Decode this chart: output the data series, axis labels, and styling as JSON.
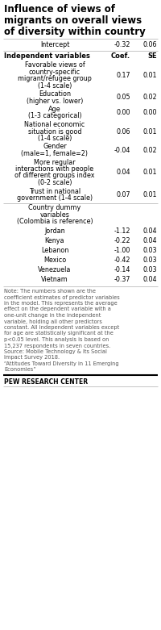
{
  "title": "Influence of views of migrants on overall views of diversity within country",
  "intercept_label": "Intercept",
  "intercept_coef": "-0.32",
  "intercept_se": "0.06",
  "header_label": "Independent variables",
  "header_coef": "Coef.",
  "header_se": "SE",
  "rows": [
    {
      "label": "Favorable views of\ncountry-specific\nmigrant/refugee group\n(1-4 scale)",
      "coef": "0.17",
      "se": "0.01",
      "coef_line": 3
    },
    {
      "label": "Education\n(higher vs. lower)",
      "coef": "0.05",
      "se": "0.02",
      "coef_line": 1
    },
    {
      "label": "Age\n(1-3 categorical)",
      "coef": "0.00",
      "se": "0.00",
      "coef_line": 1
    },
    {
      "label": "National economic\nsituation is good\n(1-4 scale)",
      "coef": "0.06",
      "se": "0.01",
      "coef_line": 2
    },
    {
      "label": "Gender\n(male=1, female=2)",
      "coef": "-0.04",
      "se": "0.02",
      "coef_line": 1
    },
    {
      "label": "More regular\ninteractions with people\nof different groups index\n(0-2 scale)",
      "coef": "0.04",
      "se": "0.01",
      "coef_line": 3
    },
    {
      "label": "Trust in national\ngovernment (1-4 scale)",
      "coef": "0.07",
      "se": "0.01",
      "coef_line": 1
    }
  ],
  "country_header": "Country dummy\nvariables\n(Colombia is reference)",
  "country_rows": [
    {
      "label": "Jordan",
      "coef": "-1.12",
      "se": "0.04"
    },
    {
      "label": "Kenya",
      "coef": "-0.22",
      "se": "0.04"
    },
    {
      "label": "Lebanon",
      "coef": "-1.00",
      "se": "0.03"
    },
    {
      "label": "Mexico",
      "coef": "-0.42",
      "se": "0.03"
    },
    {
      "label": "Venezuela",
      "coef": "-0.14",
      "se": "0.03"
    },
    {
      "label": "Vietnam",
      "coef": "-0.37",
      "se": "0.04"
    }
  ],
  "note_lines": [
    "Note: The numbers shown are the",
    "coefficient estimates of predictor variables",
    "in the model. This represents the average",
    "effect on the dependent variable with a",
    "one-unit change in the independent",
    "variable, holding all other predictors",
    "constant. All independent variables except",
    "for age are statistically significant at the",
    "p<0.05 level. This analysis is based on",
    "15,237 respondents in seven countries.",
    "Source: Mobile Technology & Its Social",
    "Impact Survey 2018.",
    "“Attitudes Toward Diversity in 11 Emerging",
    "Economies”"
  ],
  "source": "PEW RESEARCH CENTER",
  "bg_color": "#ffffff",
  "text_color": "#000000",
  "note_color": "#555555",
  "line_color": "#bbbbbb"
}
